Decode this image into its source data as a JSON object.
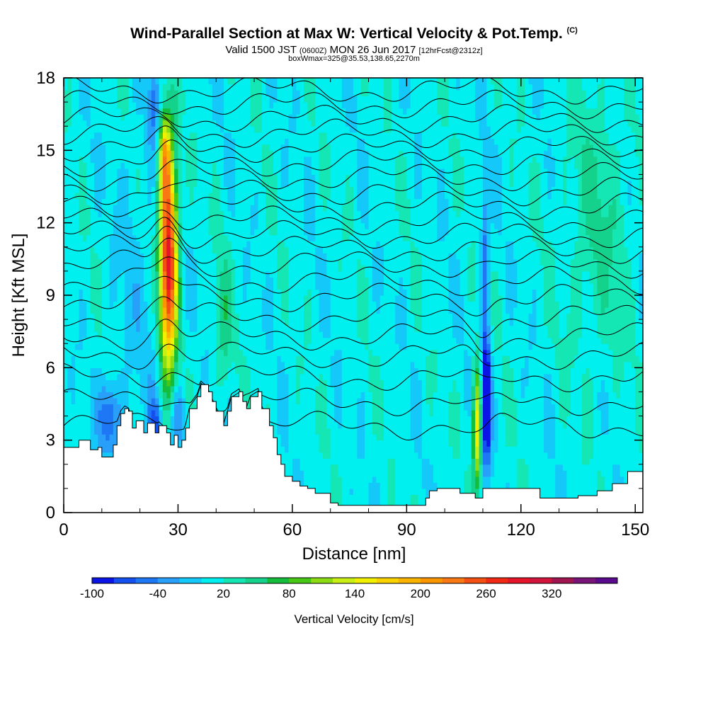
{
  "header": {
    "title": "Wind-Parallel Section at Max W: Vertical Velocity & Pot.Temp.",
    "copyright": "(C)",
    "valid_prefix": "Valid 1500 JST",
    "valid_utc": "(0600Z)",
    "valid_date": "MON 26 Jun 2017",
    "forecast": "[12hrFcst@2312z]",
    "boxmax": "boxWmax=325@35.53,138.65,2270m"
  },
  "chart_data": {
    "type": "heatmap",
    "title": "Wind-Parallel Section at Max W: Vertical Velocity & Pot.Temp.",
    "xlabel": "Distance [nm]",
    "ylabel": "Height [Kft MSL]",
    "xlim": [
      0,
      152
    ],
    "ylim": [
      0,
      18
    ],
    "x_ticks": [
      "0",
      "30",
      "60",
      "90",
      "120",
      "150"
    ],
    "y_ticks": [
      "0",
      "3",
      "6",
      "9",
      "12",
      "15",
      "18"
    ],
    "colorbar": {
      "label": "Vertical Velocity [cm/s]",
      "tick_labels": [
        "-100",
        "-40",
        "20",
        "80",
        "140",
        "200",
        "260",
        "320"
      ],
      "tick_values": [
        -100,
        -40,
        20,
        80,
        140,
        200,
        260,
        320
      ],
      "levels": [
        -100,
        -80,
        -60,
        -40,
        -20,
        0,
        20,
        40,
        60,
        80,
        100,
        120,
        140,
        160,
        180,
        200,
        220,
        240,
        260,
        280,
        300,
        320,
        340,
        360
      ],
      "colors": [
        "#0a14e6",
        "#1450f0",
        "#1e78f5",
        "#28a0fa",
        "#14c8fa",
        "#00f0f0",
        "#14e6b4",
        "#14d28c",
        "#14be3c",
        "#46c814",
        "#8cdc14",
        "#c8f014",
        "#f0f000",
        "#fad200",
        "#fab400",
        "#fa9600",
        "#fa7814",
        "#f55014",
        "#f02814",
        "#e61428",
        "#d2143c",
        "#a01450",
        "#781478",
        "#5a0a8c"
      ]
    },
    "updraft_max": {
      "x": 27,
      "height": 10.5,
      "value": 325
    },
    "notable_features": [
      {
        "x": 27,
        "z_range": [
          4,
          16
        ],
        "value": 280,
        "sign": "updraft"
      },
      {
        "x": 108,
        "z_range": [
          1,
          9
        ],
        "value": 160,
        "sign": "updraft"
      },
      {
        "x": 111,
        "z_range": [
          3,
          11
        ],
        "value": -90,
        "sign": "downdraft"
      }
    ],
    "terrain": {
      "x": [
        0,
        4,
        7,
        9,
        10,
        13,
        14,
        15,
        16,
        17,
        18,
        19,
        21,
        22,
        24,
        25,
        27,
        28,
        29,
        30,
        31,
        32,
        33,
        35,
        36,
        38,
        39,
        40,
        42,
        43,
        44,
        46,
        47,
        48,
        49,
        51,
        52,
        54,
        55,
        56,
        57,
        58,
        60,
        62,
        64,
        66,
        70,
        72,
        80,
        90,
        95,
        96,
        98,
        100,
        104,
        108,
        110,
        112,
        118,
        125,
        130,
        135,
        140,
        144,
        148,
        152
      ],
      "height": [
        2.7,
        3.0,
        2.6,
        2.7,
        2.3,
        2.8,
        3.6,
        4.1,
        4.3,
        4.2,
        3.5,
        3.8,
        3.3,
        3.7,
        3.3,
        3.6,
        3.3,
        2.8,
        3.2,
        2.7,
        3.0,
        3.5,
        4.3,
        4.8,
        5.3,
        5.0,
        4.6,
        4.2,
        3.6,
        4.2,
        4.8,
        5.0,
        4.6,
        4.3,
        4.8,
        5.0,
        4.3,
        3.6,
        3.1,
        2.4,
        2.0,
        1.5,
        1.3,
        1.1,
        1.0,
        0.8,
        0.4,
        0.3,
        0.3,
        0.3,
        0.6,
        0.9,
        1.0,
        1.0,
        0.8,
        0.6,
        1.0,
        1.0,
        1.0,
        0.6,
        0.6,
        0.7,
        0.9,
        1.2,
        1.7,
        1.7
      ]
    },
    "isentrope_heights": [
      3.6,
      4.6,
      5.6,
      6.5,
      7.3,
      8.1,
      8.9,
      9.6,
      10.3,
      10.9,
      11.5,
      12.1,
      12.7,
      13.3,
      13.9,
      14.5,
      15.1,
      15.7,
      16.3,
      16.9,
      17.5
    ],
    "grid": false
  },
  "style": {
    "axis_color": "#000000",
    "terrain_color": "#ffffff",
    "contour_color": "#000000"
  }
}
